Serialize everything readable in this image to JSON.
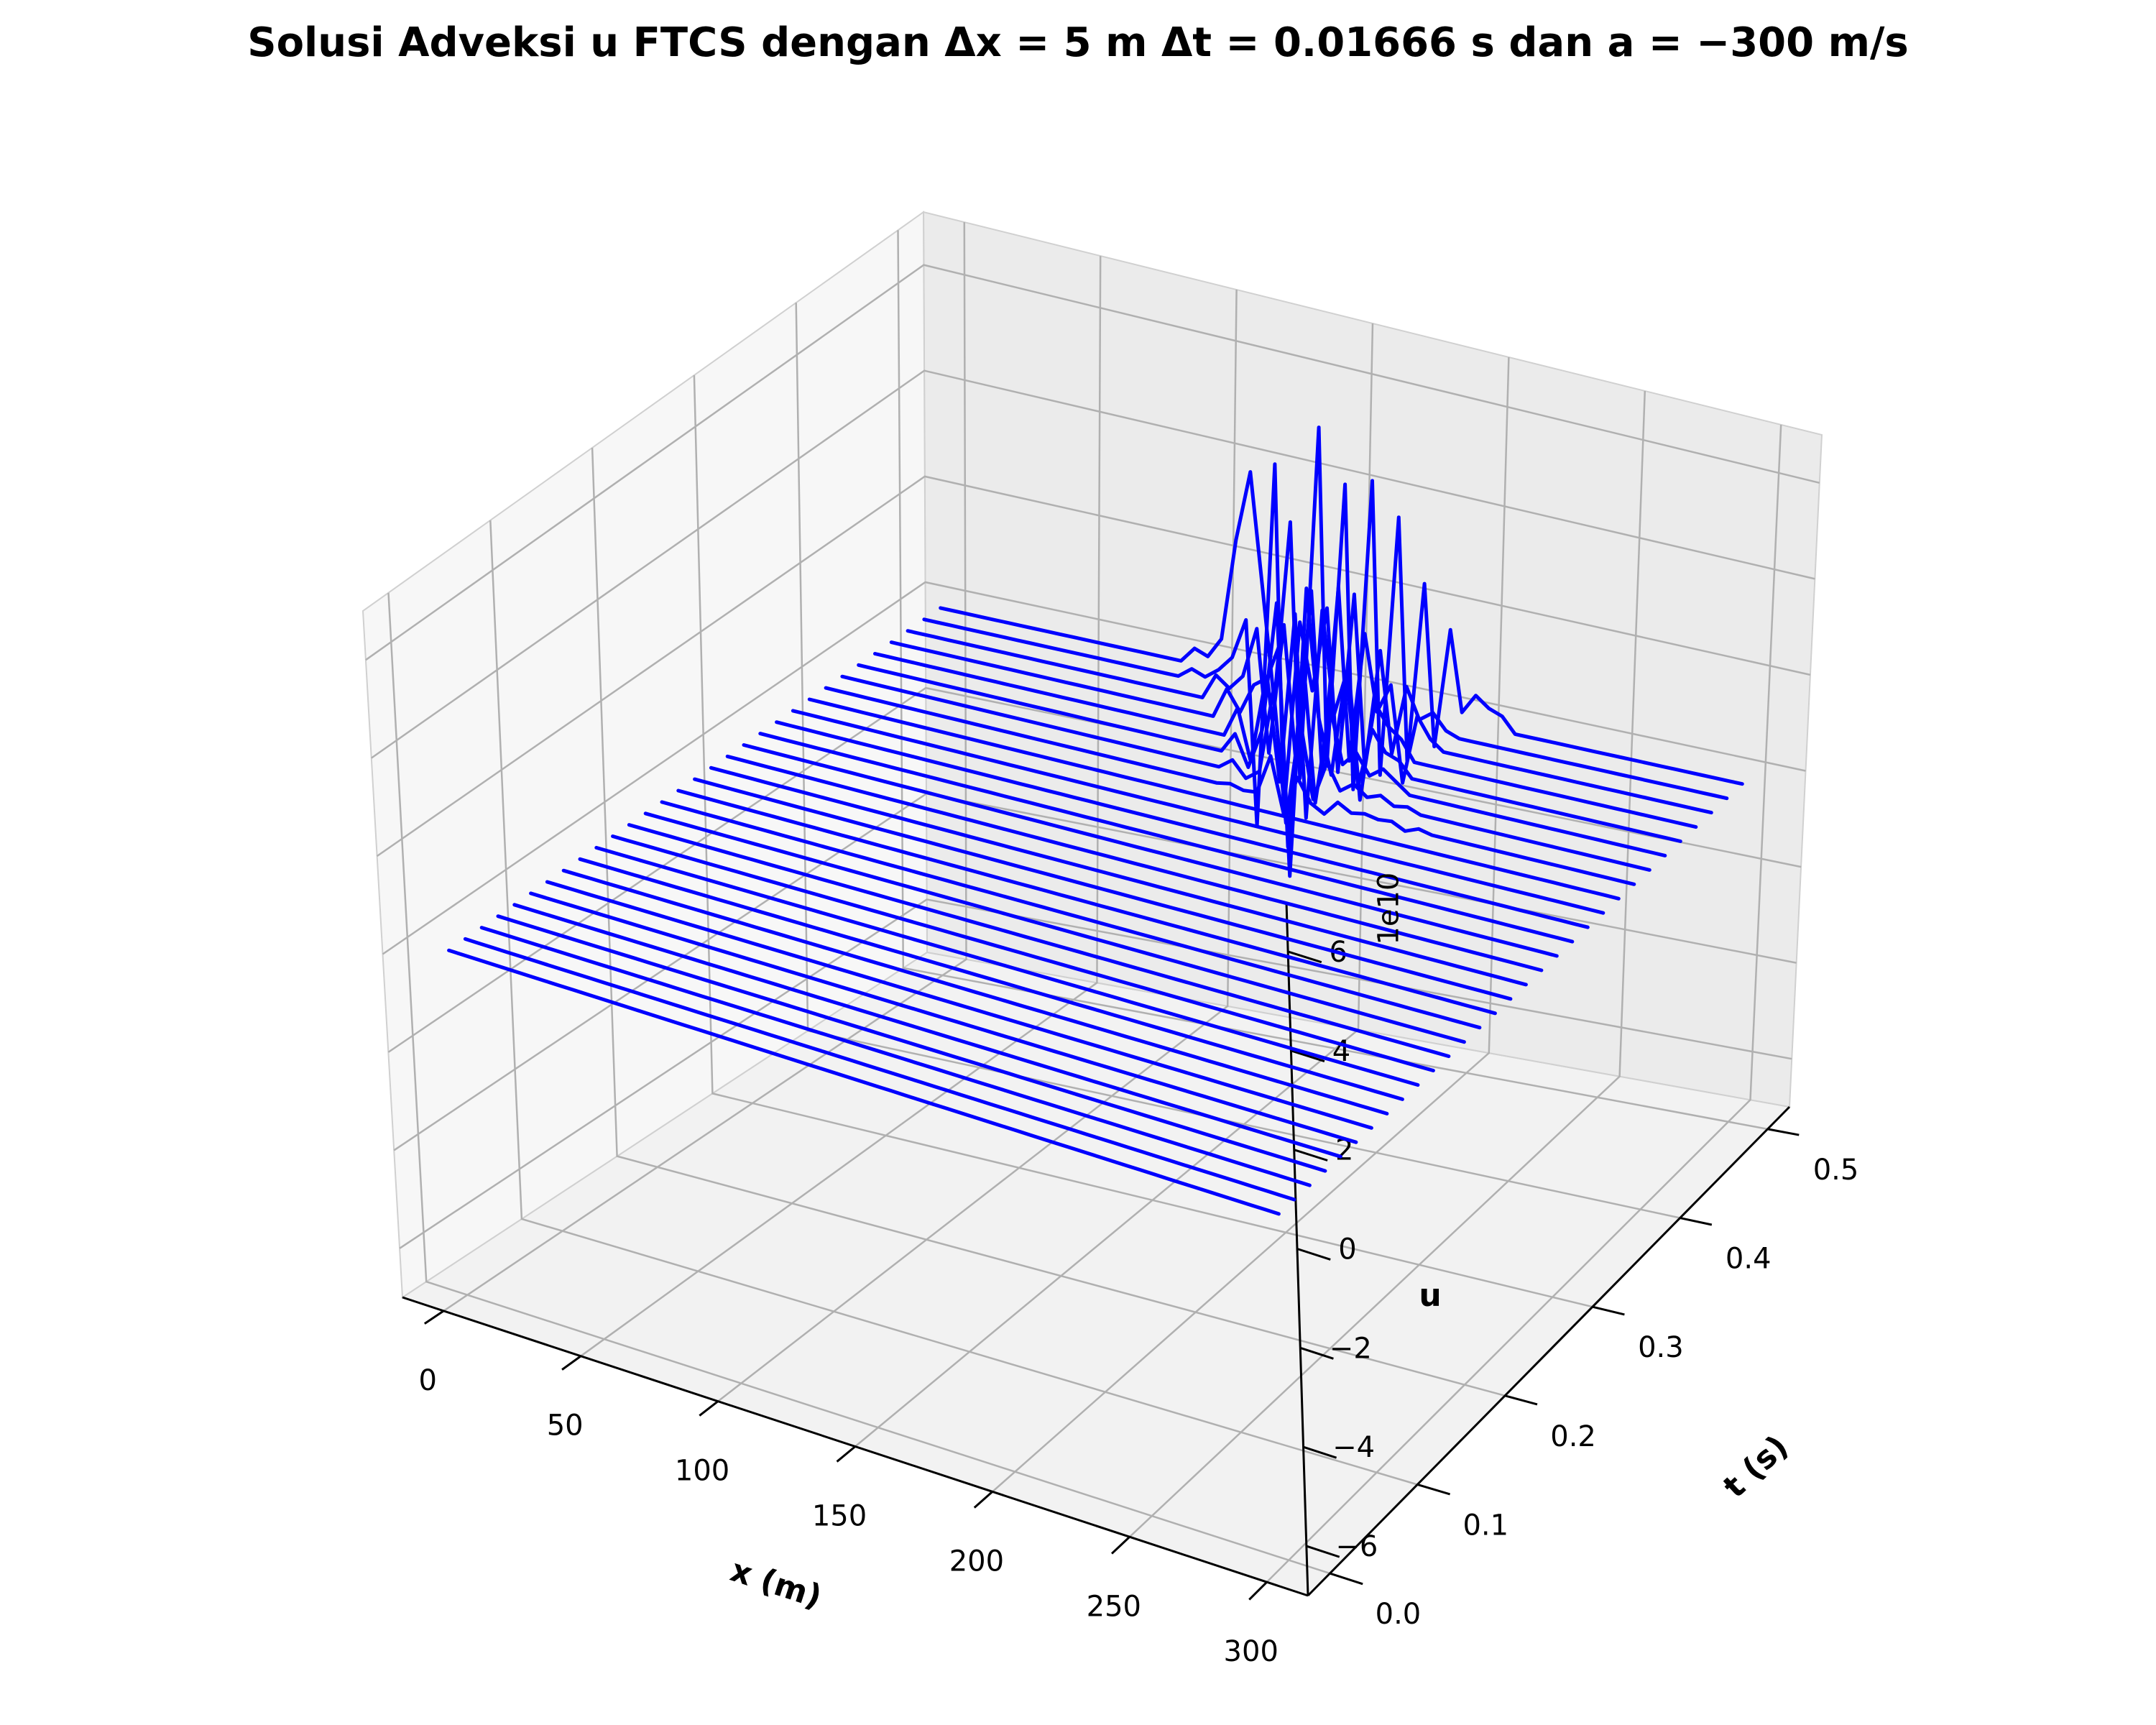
{
  "chart_data": {
    "type": "line",
    "plot_kind": "3d-waterfall",
    "title": "Solusi Adveksi u FTCS dengan Δx = 5 m Δt = 0.01666 s dan a = −300 m/s",
    "xlabel": "x (m)",
    "ylabel": "t (s)",
    "zlabel": "u",
    "z_offset_label": "1e10",
    "xlim": [
      -15,
      315
    ],
    "ylim": [
      -0.025,
      0.525
    ],
    "zlim": [
      -7,
      7
    ],
    "z_scale": 10000000000,
    "x_ticks": [
      "0",
      "50",
      "100",
      "150",
      "200",
      "250",
      "300"
    ],
    "y_ticks": [
      "0.0",
      "0.1",
      "0.2",
      "0.3",
      "0.4",
      "0.5"
    ],
    "z_ticks": [
      "−6",
      "−4",
      "−2",
      "0",
      "2",
      "4",
      "6"
    ],
    "grid": true,
    "line_color": "#0000ff",
    "x_domain": [
      0,
      300
    ],
    "dx": 5,
    "dt": 0.01666,
    "n_time_levels": 31,
    "oscillating_profiles": [
      {
        "t": 0.3832,
        "x_start": 150,
        "values": [
          0.05,
          -0.02,
          0.01,
          0.8,
          -0.3,
          0.5,
          0.05,
          -0.1,
          0.2,
          0.05,
          0.1,
          0.05,
          0.08,
          -0.05,
          0.06
        ]
      },
      {
        "t": 0.3998,
        "x_start": 145,
        "values": [
          0.2,
          -0.1,
          0.1,
          1.8,
          -0.8,
          1.3,
          -0.2,
          0.6,
          0.1,
          0.3,
          0.1,
          0.2,
          0.05,
          0.1
        ]
      },
      {
        "t": 0.4165,
        "x_start": 140,
        "values": [
          0.4,
          -0.2,
          0.6,
          3.2,
          -1.6,
          2.2,
          -0.6,
          1.4,
          0.3,
          0.6,
          0.2,
          0.4,
          0.2
        ]
      },
      {
        "t": 0.4332,
        "x_start": 135,
        "values": [
          0.6,
          -0.4,
          1.2,
          2.0,
          -2.5,
          3.3,
          0.8,
          -0.3,
          1.8,
          -0.4,
          0.8,
          0.4,
          0.3
        ]
      },
      {
        "t": 0.4498,
        "x_start": 125,
        "values": [
          0.6,
          0.2,
          0.8,
          1.0,
          -1.0,
          2.4,
          -1.6,
          2.6,
          0.6,
          1.6,
          -1.0,
          1.0,
          0.6,
          0.4
        ]
      },
      {
        "t": 0.4665,
        "x_start": 115,
        "values": [
          0.5,
          0.3,
          0.6,
          1.6,
          -0.8,
          1.8,
          -0.8,
          2.6,
          -1.0,
          2.8,
          -0.6,
          2.0,
          0.5,
          1.1,
          -0.8,
          0.6,
          0.2
        ]
      },
      {
        "t": 0.4831,
        "x_start": 100,
        "values": [
          0.2,
          0.1,
          0.3,
          0.6,
          1.4,
          -2.6,
          4.6,
          -2.2,
          1.6,
          0.3,
          2.0,
          -1.2,
          2.4,
          -1.0,
          1.4,
          -0.6,
          0.8,
          0.2,
          0.4,
          0.1
        ]
      },
      {
        "t": 0.4998,
        "x_start": 95,
        "values": [
          0.3,
          0.2,
          0.6,
          2.6,
          4.0,
          1.8,
          -0.4,
          3.2,
          -1.8,
          5.2,
          -1.4,
          4.2,
          -1.8,
          4.4,
          -1.4,
          3.8,
          -1.0,
          2.6,
          -0.6,
          1.8,
          0.2,
          0.6,
          0.4,
          0.3
        ]
      }
    ]
  }
}
